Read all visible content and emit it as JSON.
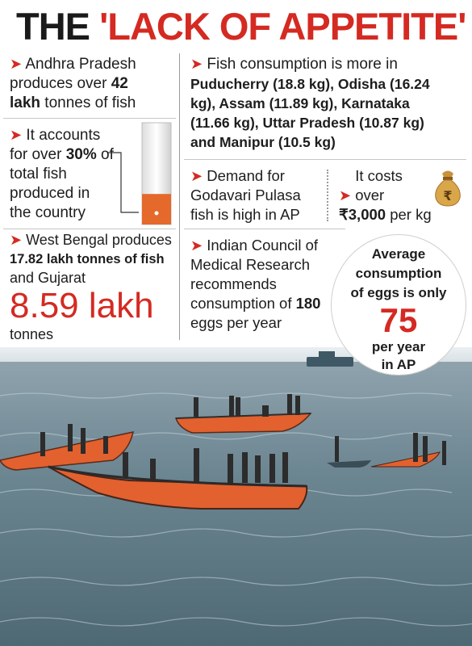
{
  "title": {
    "part1": "THE ",
    "part2": "'LACK OF APPETITE'"
  },
  "facts": {
    "ap_production": {
      "pre": "Andhra Pradesh produces over ",
      "value": "42",
      "unit_bold": "lakh",
      "post": " tonnes of fish"
    },
    "share": {
      "pre": "It accounts for over ",
      "value": "30%",
      "post": " of total fish produced in the country",
      "bar_fill_fraction": 0.3
    },
    "wb_gujarat": {
      "line1": "West Bengal produces",
      "line2": "17.82 lakh tonnes of fish",
      "line3": "and Gujarat",
      "big": "8.59 lakh",
      "tail": "tonnes"
    },
    "consumption": {
      "lead": "Fish consumption is more in",
      "list": "Puducherry (18.8 kg), Odisha (16.24 kg), Assam (11.89 kg), Karnataka (11.66 kg), Uttar Pradesh (10.87 kg) and Manipur (10.5 kg)"
    },
    "pulasa": {
      "text": "Demand for Godavari Pulasa fish is high in AP"
    },
    "cost": {
      "pre": "It costs over",
      "value": "₹3,000",
      "post": " per kg"
    },
    "icmr": {
      "pre": "Indian Council of Medical Research recommends consumption of ",
      "value": "180",
      "post": " eggs per year"
    },
    "eggs": {
      "line1": "Average",
      "line2": "consumption",
      "line3": "of eggs is only",
      "value": "75",
      "line4": "per year",
      "line5": "in AP"
    }
  },
  "icons": {
    "bullet": "red-arrow-icon",
    "moneybag": "money-bag-icon",
    "rupee": "₹"
  },
  "colors": {
    "accent_red": "#d42a22",
    "text": "#1d1d1d",
    "bar_orange": "#e4692a",
    "sea": "#5f7a86",
    "boat_orange": "#e2612f"
  }
}
